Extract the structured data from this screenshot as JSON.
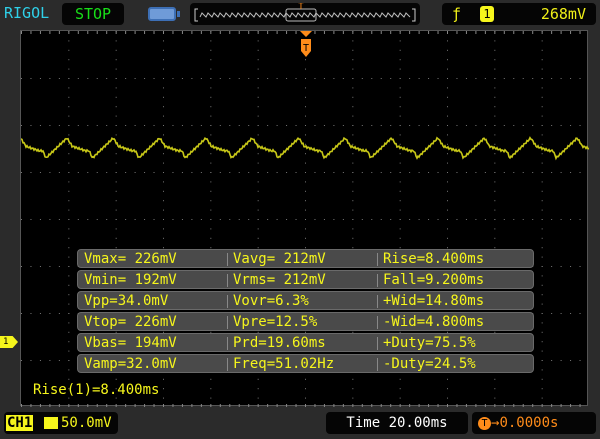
{
  "header": {
    "brand": "RIGOL",
    "run_state": "STOP",
    "trigger_source": "1",
    "trigger_level": "268mV",
    "trigger_slope_icon": "rising-edge-icon",
    "trigger_marker": "T"
  },
  "colors": {
    "channel1": "#f6f61c",
    "trigger": "#ff8c1a",
    "brand": "#2fd0e8",
    "run_state": "#18e018"
  },
  "channel_marker": "1",
  "measurements": [
    [
      "Vmax= 226mV",
      "Vavg= 212mV",
      "Rise=8.400ms"
    ],
    [
      "Vmin= 192mV",
      "Vrms= 212mV",
      "Fall=9.200ms"
    ],
    [
      "Vpp=34.0mV",
      "Vovr=6.3%",
      "+Wid=14.80ms"
    ],
    [
      "Vtop= 226mV",
      "Vpre=12.5%",
      "-Wid=4.800ms"
    ],
    [
      "Vbas= 194mV",
      "Prd=19.60ms",
      "+Duty=75.5%"
    ],
    [
      "Vamp=32.0mV",
      "Freq=51.02Hz",
      "-Duty=24.5%"
    ]
  ],
  "last_measurement": "Rise(1)=8.400ms",
  "footer": {
    "channel": "CH1",
    "scale": "50.0mV",
    "timebase": "Time 20.00ms",
    "trigger_offset": "0.0000s"
  }
}
